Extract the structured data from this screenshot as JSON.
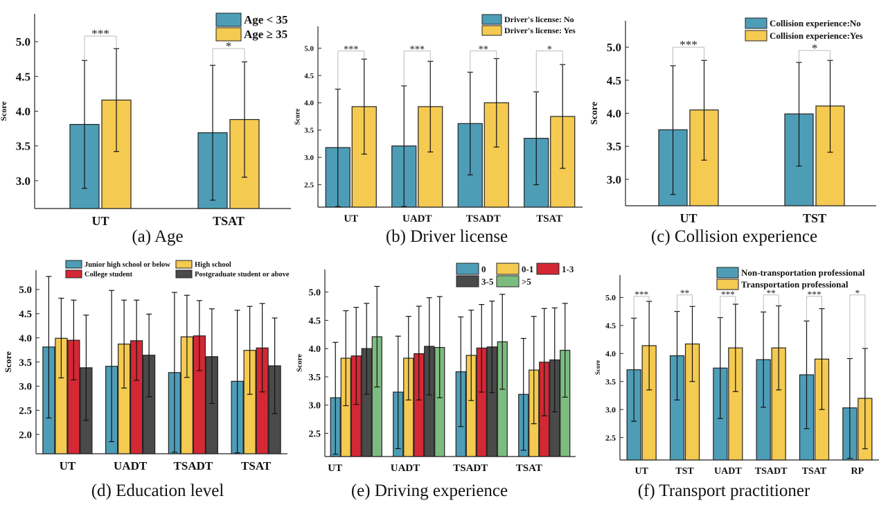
{
  "colors": {
    "blue": "#4e9db7",
    "yellow": "#f5ca50",
    "red": "#d42834",
    "dark": "#4a4a4a",
    "green": "#7cbc80"
  },
  "chart_data": [
    {
      "id": "a",
      "type": "bar",
      "caption": "(a) Age",
      "ylabel": "Score",
      "ylim": [
        2.6,
        5.4
      ],
      "yticks": [
        "3.0",
        "3.5",
        "4.0",
        "4.5",
        "5.0"
      ],
      "categories": [
        "UT",
        "TSAT"
      ],
      "legend": "top-right",
      "series": [
        {
          "name": "Age < 35",
          "color": "blue",
          "values": [
            3.81,
            3.69
          ],
          "err_high": [
            4.73,
            4.66
          ],
          "err_low": [
            2.89,
            2.72
          ]
        },
        {
          "name": "Age ≥ 35",
          "color": "yellow",
          "values": [
            4.16,
            3.88
          ],
          "err_high": [
            4.9,
            4.71
          ],
          "err_low": [
            3.42,
            3.05
          ]
        }
      ],
      "significance": [
        "***",
        "*"
      ]
    },
    {
      "id": "b",
      "type": "bar",
      "caption": "(b) Driver license",
      "ylabel": "Score",
      "ylim": [
        2.09,
        5.4
      ],
      "yticks": [
        "2.5",
        "3.0",
        "3.5",
        "4.0",
        "4.5",
        "5.0"
      ],
      "categories": [
        "UT",
        "UADT",
        "TSADT",
        "TSAT"
      ],
      "legend": "top-right",
      "series": [
        {
          "name": "Driver's license: No",
          "color": "blue",
          "values": [
            3.18,
            3.21,
            3.62,
            3.35
          ],
          "err_high": [
            4.25,
            4.31,
            4.56,
            4.2
          ],
          "err_low": [
            2.1,
            2.1,
            2.68,
            2.5
          ]
        },
        {
          "name": "Driver's license: Yes",
          "color": "yellow",
          "values": [
            3.93,
            3.93,
            4.0,
            3.75
          ],
          "err_high": [
            4.8,
            4.76,
            4.81,
            4.7
          ],
          "err_low": [
            3.06,
            3.1,
            3.19,
            2.8
          ]
        }
      ],
      "significance": [
        "***",
        "***",
        "**",
        "*"
      ]
    },
    {
      "id": "c",
      "type": "bar",
      "caption": "(c) Collision experience",
      "ylabel": "Score",
      "ylim": [
        2.6,
        5.4
      ],
      "yticks": [
        "3.0",
        "3.5",
        "4.0",
        "4.5",
        "5.0"
      ],
      "categories": [
        "UT",
        "TST"
      ],
      "legend": "top-right",
      "series": [
        {
          "name": "Collision experience:No",
          "color": "blue",
          "values": [
            3.75,
            3.99
          ],
          "err_high": [
            4.72,
            4.77
          ],
          "err_low": [
            2.77,
            3.2
          ]
        },
        {
          "name": "Collision experience:Yes",
          "color": "yellow",
          "values": [
            4.05,
            4.11
          ],
          "err_high": [
            4.8,
            4.8
          ],
          "err_low": [
            3.29,
            3.41
          ]
        }
      ],
      "significance": [
        "***",
        "*"
      ]
    },
    {
      "id": "d",
      "type": "bar",
      "caption": "(d) Education level",
      "ylabel": "Score",
      "ylim": [
        1.6,
        5.4
      ],
      "yticks": [
        "2.0",
        "2.5",
        "3.0",
        "3.5",
        "4.0",
        "4.5",
        "5.0"
      ],
      "categories": [
        "UT",
        "UADT",
        "TSADT",
        "TSAT"
      ],
      "legend": "top",
      "series": [
        {
          "name": "Junior high school or below",
          "color": "blue",
          "values": [
            3.81,
            3.41,
            3.28,
            3.1
          ],
          "err_high": [
            5.27,
            4.98,
            4.94,
            4.57
          ],
          "err_low": [
            2.34,
            1.85,
            1.63,
            1.62
          ]
        },
        {
          "name": "High school",
          "color": "yellow",
          "values": [
            3.99,
            3.87,
            4.02,
            3.74
          ],
          "err_high": [
            4.82,
            4.78,
            4.88,
            4.65
          ],
          "err_low": [
            3.17,
            2.96,
            3.18,
            2.83
          ]
        },
        {
          "name": "College student",
          "color": "red",
          "values": [
            3.95,
            3.94,
            4.04,
            3.79
          ],
          "err_high": [
            4.78,
            4.78,
            4.77,
            4.71
          ],
          "err_low": [
            3.13,
            3.12,
            3.32,
            2.88
          ]
        },
        {
          "name": "Postgraduate student or above",
          "color": "dark",
          "values": [
            3.38,
            3.64,
            3.61,
            3.42
          ],
          "err_high": [
            4.47,
            4.49,
            4.6,
            4.41
          ],
          "err_low": [
            2.29,
            2.78,
            2.64,
            2.43
          ]
        }
      ],
      "significance": []
    },
    {
      "id": "e",
      "type": "bar",
      "caption": "(e) Driving experience",
      "ylabel": "Score",
      "ylim": [
        2.09,
        5.4
      ],
      "yticks": [
        "2.5",
        "3.0",
        "3.5",
        "4.0",
        "4.5",
        "5.0"
      ],
      "categories": [
        "UT",
        "UADT",
        "TSADT",
        "TSAT"
      ],
      "legend": "top-right",
      "series": [
        {
          "name": "0",
          "color": "blue",
          "values": [
            3.13,
            3.23,
            3.59,
            3.19
          ],
          "err_high": [
            4.11,
            4.22,
            4.56,
            4.18
          ],
          "err_low": [
            2.13,
            2.23,
            2.62,
            2.2
          ]
        },
        {
          "name": "0-1",
          "color": "yellow",
          "values": [
            3.83,
            3.83,
            3.88,
            3.62
          ],
          "err_high": [
            4.67,
            4.57,
            4.68,
            4.57
          ],
          "err_low": [
            2.99,
            3.09,
            3.08,
            2.67
          ]
        },
        {
          "name": "1-3",
          "color": "red",
          "values": [
            3.87,
            3.91,
            4.01,
            3.76
          ],
          "err_high": [
            4.73,
            4.75,
            4.78,
            4.71
          ],
          "err_low": [
            3.01,
            3.09,
            3.23,
            2.81
          ]
        },
        {
          "name": "3-5",
          "color": "dark",
          "values": [
            4.0,
            4.04,
            4.03,
            3.8
          ],
          "err_high": [
            4.8,
            4.9,
            4.84,
            4.72
          ],
          "err_low": [
            3.19,
            3.18,
            3.22,
            2.88
          ]
        },
        {
          "name": ">5",
          "color": "green",
          "values": [
            4.21,
            4.02,
            4.12,
            3.97
          ],
          "err_high": [
            5.1,
            4.92,
            4.96,
            4.8
          ],
          "err_low": [
            3.32,
            3.13,
            3.28,
            3.14
          ]
        }
      ],
      "significance": []
    },
    {
      "id": "f",
      "type": "bar",
      "caption": "(f) Transport practitioner",
      "ylabel": "Score",
      "ylim": [
        2.1,
        5.4
      ],
      "yticks": [
        "2.5",
        "3.0",
        "3.5",
        "4.0",
        "4.5",
        "5.0"
      ],
      "categories": [
        "UT",
        "TST",
        "UADT",
        "TSADT",
        "TSAT",
        "RP"
      ],
      "legend": "top-right",
      "series": [
        {
          "name": "Non-transportation professional",
          "color": "blue",
          "values": [
            3.71,
            3.96,
            3.74,
            3.89,
            3.62,
            3.03
          ],
          "err_high": [
            4.63,
            4.75,
            4.64,
            4.74,
            4.58,
            3.91
          ],
          "err_low": [
            2.79,
            3.17,
            2.84,
            3.04,
            2.66,
            2.13
          ]
        },
        {
          "name": "Transportation professional",
          "color": "yellow",
          "values": [
            4.14,
            4.17,
            4.1,
            4.1,
            3.9,
            3.2
          ],
          "err_high": [
            4.93,
            4.84,
            4.88,
            4.85,
            4.8,
            4.09
          ],
          "err_low": [
            3.35,
            3.5,
            3.32,
            3.35,
            3.0,
            2.3
          ]
        }
      ],
      "significance": [
        "***",
        "**",
        "***",
        "**",
        "***",
        "*"
      ]
    }
  ]
}
